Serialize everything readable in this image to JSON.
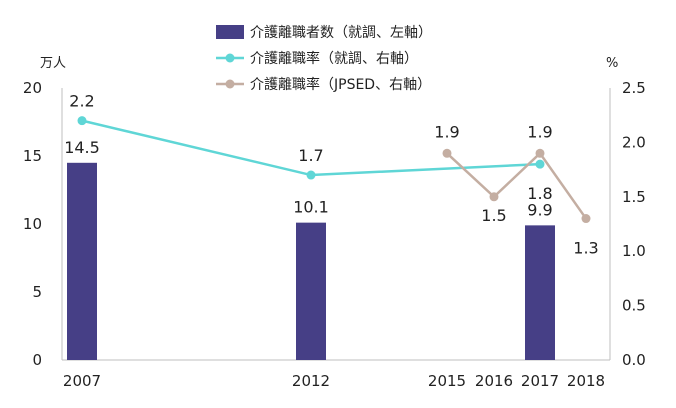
{
  "chart_data": {
    "type": "bar",
    "x": [
      "2007",
      "2012",
      "2015",
      "2016",
      "2017",
      "2018"
    ],
    "left_axis": {
      "unit": "万人",
      "ylim": [
        0,
        20
      ],
      "ticks": [
        "0",
        "5",
        "10",
        "15",
        "20"
      ]
    },
    "right_axis": {
      "unit": "%",
      "ylim": [
        0,
        2.5
      ],
      "ticks": [
        "0.0",
        "0.5",
        "1.0",
        "1.5",
        "2.0",
        "2.5"
      ]
    },
    "legend_position": "top-center",
    "grid": false,
    "series": [
      {
        "name": "介護離職者数（就調、左軸）",
        "kind": "bar",
        "axis": "left",
        "color": "#463f86",
        "points": [
          {
            "x": "2007",
            "y": 14.5,
            "label": "14.5"
          },
          {
            "x": "2012",
            "y": 10.1,
            "label": "10.1"
          },
          {
            "x": "2017",
            "y": 9.9,
            "label": "9.9"
          }
        ]
      },
      {
        "name": "介護離職率（就調、右軸）",
        "kind": "line",
        "axis": "right",
        "color": "#5fd6d6",
        "points": [
          {
            "x": "2007",
            "y": 2.2,
            "label": "2.2"
          },
          {
            "x": "2012",
            "y": 1.7,
            "label": "1.7"
          },
          {
            "x": "2017",
            "y": 1.8,
            "label": "1.8"
          }
        ]
      },
      {
        "name": "介護離職率（JPSED、右軸）",
        "kind": "line",
        "axis": "right",
        "color": "#c4aea2",
        "points": [
          {
            "x": "2015",
            "y": 1.9,
            "label": "1.9"
          },
          {
            "x": "2016",
            "y": 1.5,
            "label": "1.5"
          },
          {
            "x": "2017",
            "y": 1.9,
            "label": "1.9"
          },
          {
            "x": "2018",
            "y": 1.3,
            "label": "1.3"
          }
        ]
      }
    ]
  }
}
